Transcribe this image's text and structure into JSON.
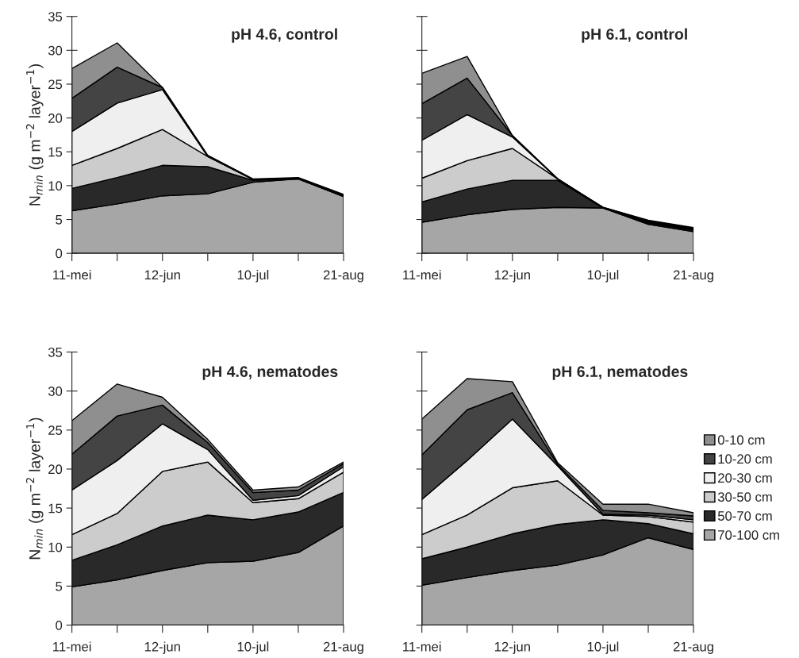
{
  "chart_data": [
    {
      "type": "area",
      "stacked": true,
      "title": "pH 4.6, control",
      "ylabel": "N$_{min}$ (g m$^{−2}$ layer$^{−1}$)",
      "categories": [
        "11-mei",
        null,
        "12-jun",
        null,
        "10-jul",
        null,
        "21-aug"
      ],
      "ylim": [
        0,
        35
      ],
      "yticks": [
        0,
        5,
        10,
        15,
        20,
        25,
        30,
        35
      ],
      "series": [
        {
          "color": "#a6a6a6",
          "values": [
            6.3,
            7.3,
            8.5,
            8.8,
            10.5,
            11.0,
            8.4
          ]
        },
        {
          "color": "#292929",
          "values": [
            3.3,
            3.9,
            4.5,
            4.0,
            0.3,
            0,
            0
          ]
        },
        {
          "color": "#cccccc",
          "values": [
            3.4,
            4.3,
            5.3,
            1.5,
            0.1,
            0,
            0.1
          ]
        },
        {
          "color": "#efefef",
          "values": [
            5.0,
            6.7,
            5.9,
            0,
            0,
            0.1,
            0
          ]
        },
        {
          "color": "#444444",
          "values": [
            4.9,
            5.3,
            0.3,
            0.1,
            0,
            0,
            0.1
          ]
        },
        {
          "color": "#8f8f8f",
          "values": [
            4.4,
            3.6,
            0,
            0.1,
            0.1,
            0.1,
            0.1
          ]
        }
      ]
    },
    {
      "type": "area",
      "stacked": true,
      "title": "pH 6.1, control",
      "categories": [
        "11-mei",
        null,
        "12-jun",
        null,
        "10-jul",
        null,
        "21-aug"
      ],
      "ylim": [
        0,
        35
      ],
      "yticks": [
        0,
        5,
        10,
        15,
        20,
        25,
        30,
        35
      ],
      "tick_labels": "x",
      "series": [
        {
          "color": "#a6a6a6",
          "values": [
            4.6,
            5.7,
            6.5,
            6.8,
            6.7,
            4.3,
            3.2
          ]
        },
        {
          "color": "#292929",
          "values": [
            3.0,
            3.8,
            4.3,
            4.0,
            0,
            0.2,
            0.2
          ]
        },
        {
          "color": "#cccccc",
          "values": [
            3.5,
            4.2,
            4.7,
            0.2,
            0,
            0.1,
            0.1
          ]
        },
        {
          "color": "#efefef",
          "values": [
            5.6,
            6.8,
            1.7,
            0,
            0,
            0.1,
            0.1
          ]
        },
        {
          "color": "#444444",
          "values": [
            5.4,
            5.4,
            0.2,
            0,
            0.1,
            0.1,
            0.1
          ]
        },
        {
          "color": "#8f8f8f",
          "values": [
            4.5,
            3.2,
            0,
            0,
            0,
            0.1,
            0.1
          ]
        }
      ]
    },
    {
      "type": "area",
      "stacked": true,
      "title": "pH 4.6, nematodes",
      "ylabel": "N$_{min}$ (g m$^{−2}$ layer$^{−1}$)",
      "categories": [
        "11-mei",
        null,
        "12-jun",
        null,
        "10-jul",
        null,
        "21-aug"
      ],
      "ylim": [
        0,
        35
      ],
      "yticks": [
        0,
        5,
        10,
        15,
        20,
        25,
        30,
        35
      ],
      "series": [
        {
          "color": "#a6a6a6",
          "values": [
            4.9,
            5.8,
            7.0,
            8.0,
            8.2,
            9.3,
            12.7
          ]
        },
        {
          "color": "#292929",
          "values": [
            3.4,
            4.5,
            5.7,
            6.1,
            5.3,
            5.2,
            4.3
          ]
        },
        {
          "color": "#cccccc",
          "values": [
            3.3,
            4.0,
            7.0,
            6.8,
            2.2,
            1.7,
            2.6
          ]
        },
        {
          "color": "#efefef",
          "values": [
            5.7,
            6.8,
            6.1,
            1.6,
            0.3,
            0.4,
            0.7
          ]
        },
        {
          "color": "#444444",
          "values": [
            4.6,
            5.7,
            2.4,
            0.9,
            1.0,
            0.7,
            0.4
          ]
        },
        {
          "color": "#8f8f8f",
          "values": [
            4.3,
            4.1,
            1.0,
            0.4,
            0.3,
            0.4,
            0.2
          ]
        }
      ]
    },
    {
      "type": "area",
      "stacked": true,
      "title": "pH 6.1, nematodes",
      "categories": [
        "11-mei",
        null,
        "12-jun",
        null,
        "10-jul",
        null,
        "21-aug"
      ],
      "ylim": [
        0,
        35
      ],
      "yticks": [
        0,
        5,
        10,
        15,
        20,
        25,
        30,
        35
      ],
      "tick_labels": "x",
      "legend": "right",
      "series": [
        {
          "name": "70-100 cm",
          "color": "#a6a6a6",
          "values": [
            5.1,
            6.1,
            7.0,
            7.7,
            9.0,
            11.2,
            9.7
          ]
        },
        {
          "name": "50-70 cm",
          "color": "#292929",
          "values": [
            3.4,
            3.9,
            4.7,
            5.2,
            4.5,
            1.8,
            2.0
          ]
        },
        {
          "name": "30-50 cm",
          "color": "#cccccc",
          "values": [
            3.1,
            4.1,
            5.9,
            5.6,
            0.6,
            0.9,
            1.5
          ]
        },
        {
          "name": "20-30 cm",
          "color": "#efefef",
          "values": [
            4.5,
            7.0,
            8.8,
            1.9,
            0.1,
            0.2,
            0.3
          ]
        },
        {
          "name": "10-20 cm",
          "color": "#444444",
          "values": [
            5.7,
            6.5,
            3.4,
            0.2,
            0.5,
            0.3,
            0.5
          ]
        },
        {
          "name": "0-10 cm",
          "color": "#8f8f8f",
          "values": [
            4.6,
            4.0,
            1.4,
            0.2,
            0.8,
            1.1,
            0.4
          ]
        }
      ]
    }
  ]
}
